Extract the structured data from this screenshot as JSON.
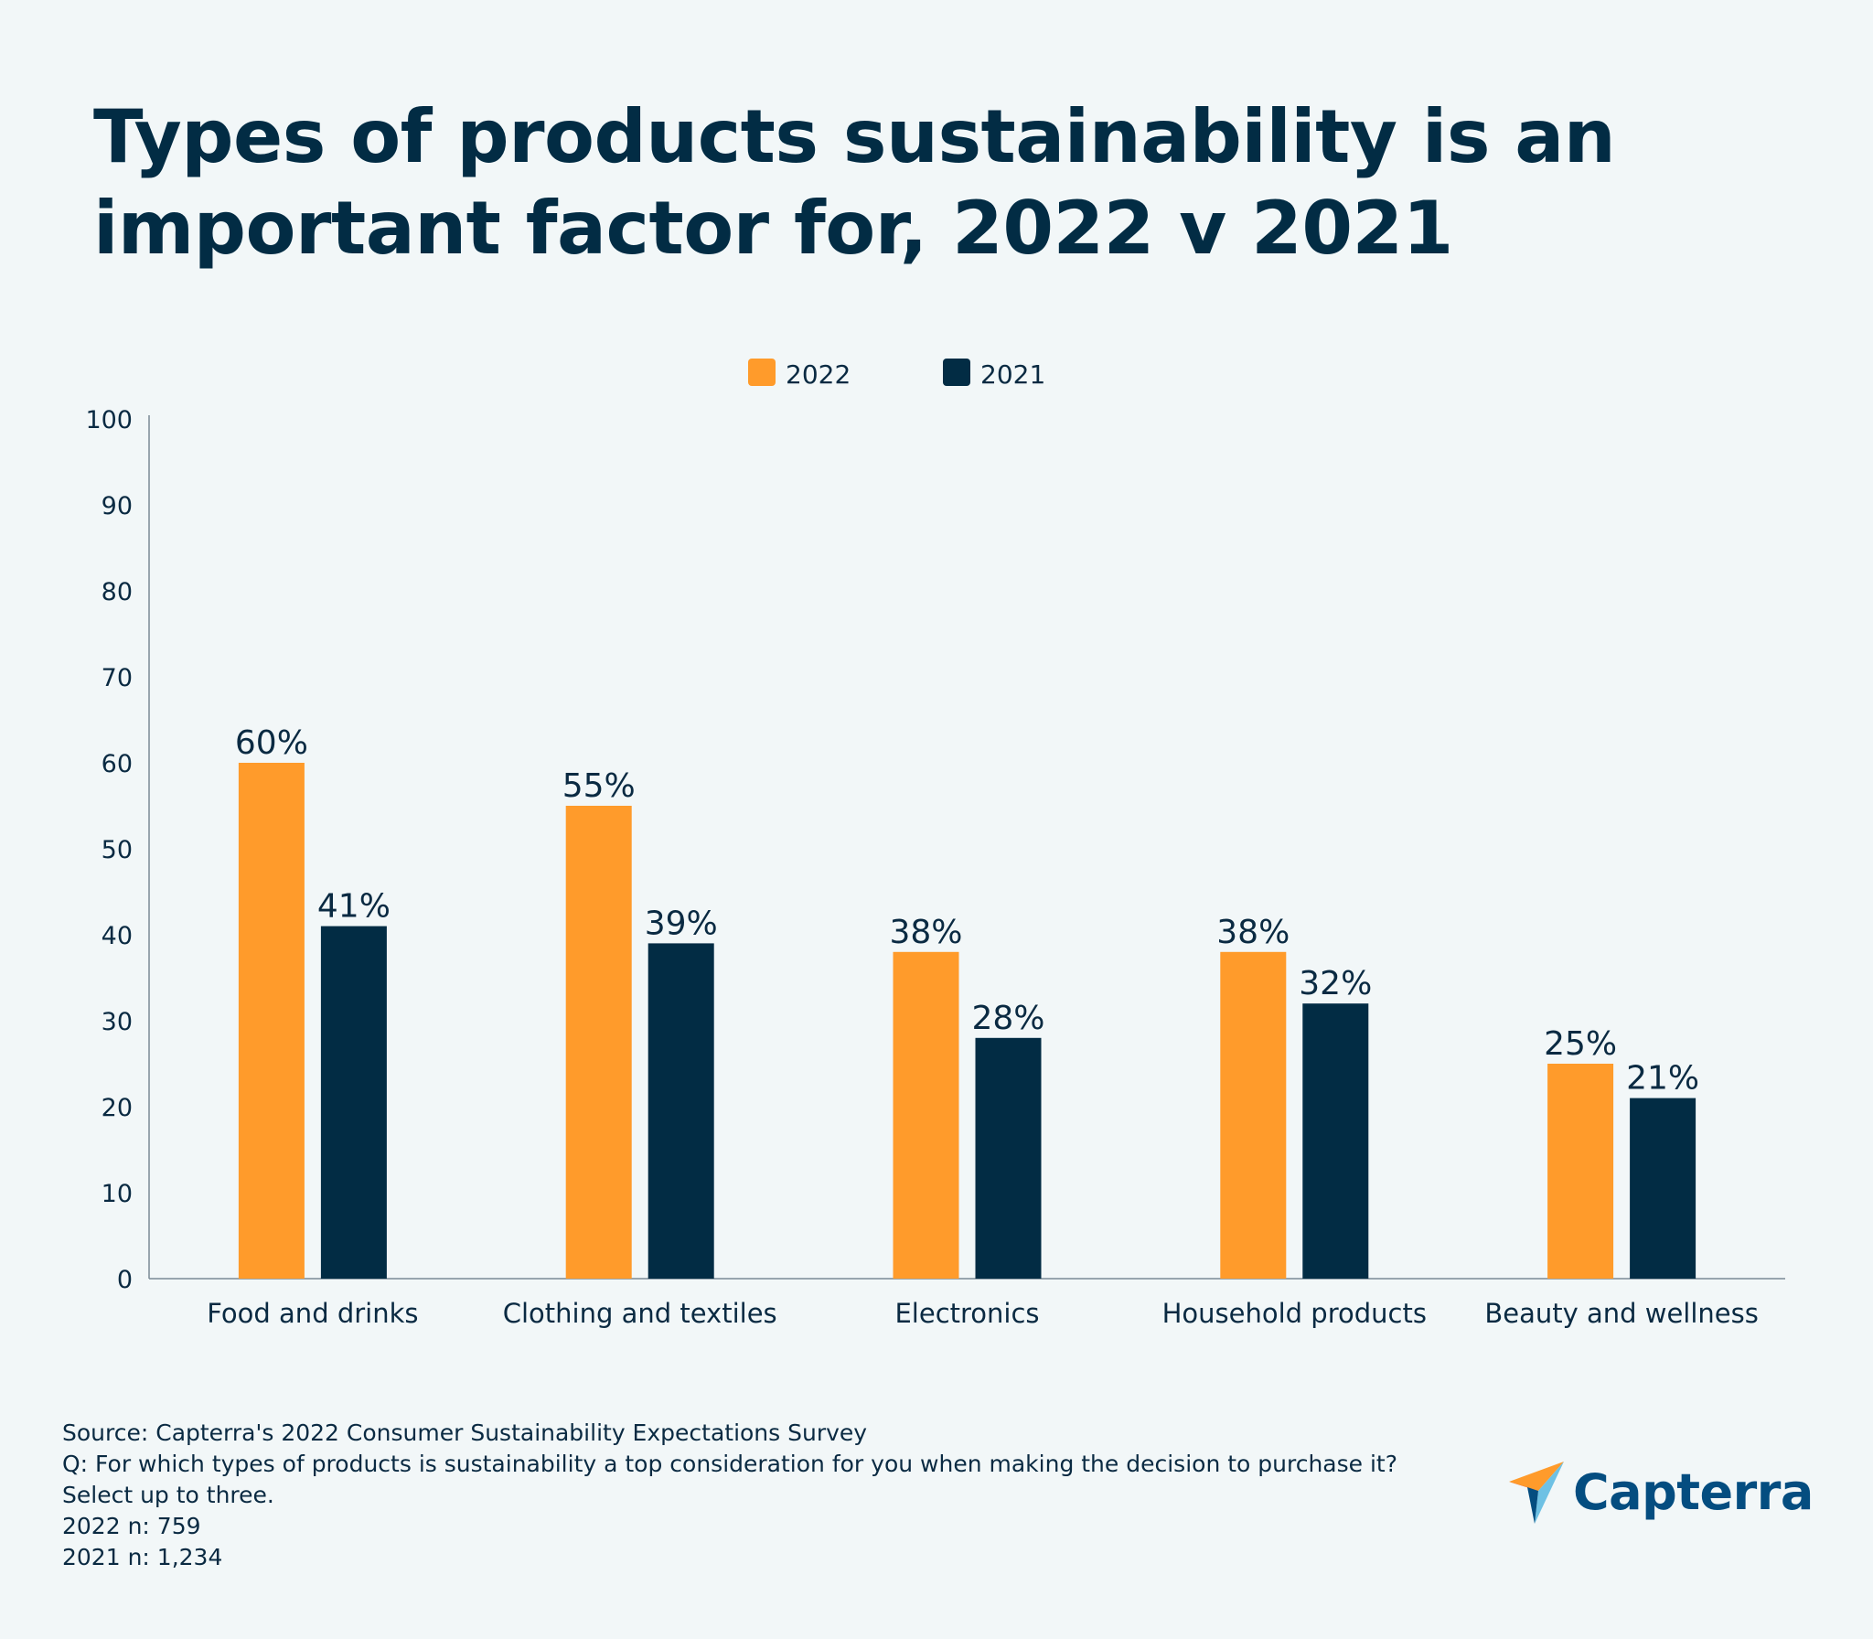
{
  "title": "Types of products sustainability is an important factor for, 2022 v 2021",
  "colors": {
    "series_2022": "#ff9b2b",
    "series_2021": "#022c44",
    "text": "#0a2a42",
    "axis": "#7a8a96",
    "brand": "#044d80"
  },
  "chart_data": {
    "type": "bar",
    "title": "Types of products sustainability is an important factor for, 2022 v 2021",
    "categories": [
      "Food and drinks",
      "Clothing and textiles",
      "Electronics",
      "Household products",
      "Beauty and wellness"
    ],
    "series": [
      {
        "name": "2022",
        "values": [
          60,
          55,
          38,
          38,
          25
        ],
        "labels": [
          "60%",
          "55%",
          "38%",
          "38%",
          "25%"
        ]
      },
      {
        "name": "2021",
        "values": [
          41,
          39,
          28,
          32,
          21
        ],
        "labels": [
          "41%",
          "39%",
          "28%",
          "32%",
          "21%"
        ]
      }
    ],
    "xlabel": "",
    "ylabel": "",
    "ylim": [
      0,
      100
    ],
    "yticks": [
      "0",
      "10",
      "20",
      "30",
      "40",
      "50",
      "60",
      "70",
      "80",
      "90",
      "100"
    ],
    "grid": false,
    "legend_position": "top-center"
  },
  "footer": {
    "source": "Source: Capterra's 2022 Consumer Sustainability Expectations Survey",
    "question": "Q: For which types of products is sustainability a top consideration for you when making the decision to purchase it?",
    "question_cont": "Select up to three.",
    "n_2022": "2022 n: 759",
    "n_2021": "2021 n: 1,234"
  },
  "logo": {
    "text": "Capterra",
    "icon": "capterra-arrow-icon"
  }
}
